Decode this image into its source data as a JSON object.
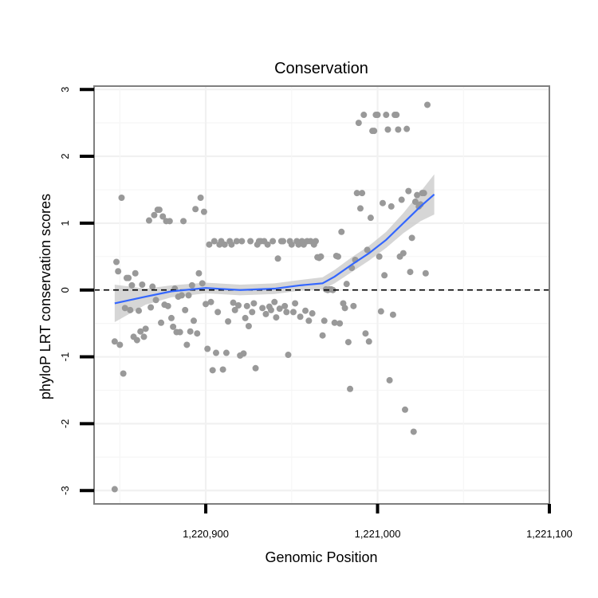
{
  "chart_data": {
    "type": "scatter",
    "title": "Conservation",
    "xlabel": "Genomic Position",
    "ylabel": "phyloP LRT conservation scores",
    "xlim": [
      1220835,
      1221100
    ],
    "ylim": [
      -3.2,
      3.05
    ],
    "x_ticks": [
      {
        "value": 1220900,
        "label": "1,220,900"
      },
      {
        "value": 1221000,
        "label": "1,221,000"
      },
      {
        "value": 1221100,
        "label": "1,221,100"
      }
    ],
    "y_ticks": [
      {
        "value": 3,
        "label": "3"
      },
      {
        "value": 2,
        "label": "2"
      },
      {
        "value": 1,
        "label": "1"
      },
      {
        "value": 0,
        "label": "0"
      },
      {
        "value": -1,
        "label": "-1"
      },
      {
        "value": -2,
        "label": "-2"
      },
      {
        "value": -3,
        "label": "-3"
      }
    ],
    "reference_line": {
      "y": 0,
      "style": "dashed"
    },
    "grid": true,
    "colors": {
      "points": "#999999",
      "smooth": "#3366ff",
      "ribbon": "#cccccc",
      "frame": "#7f7f7f"
    },
    "points": [
      [
        1220847,
        -2.98
      ],
      [
        1220847,
        -0.77
      ],
      [
        1220848,
        0.42
      ],
      [
        1220849,
        0.28
      ],
      [
        1220850,
        -0.82
      ],
      [
        1220851,
        1.38
      ],
      [
        1220852,
        -1.25
      ],
      [
        1220853,
        -0.27
      ],
      [
        1220854,
        0.18
      ],
      [
        1220855,
        0.18
      ],
      [
        1220856,
        -0.3
      ],
      [
        1220857,
        0.07
      ],
      [
        1220858,
        -0.7
      ],
      [
        1220859,
        0.25
      ],
      [
        1220860,
        -0.75
      ],
      [
        1220861,
        -0.31
      ],
      [
        1220862,
        -0.62
      ],
      [
        1220863,
        0.08
      ],
      [
        1220864,
        -0.7
      ],
      [
        1220865,
        -0.58
      ],
      [
        1220867,
        1.04
      ],
      [
        1220868,
        -0.26
      ],
      [
        1220869,
        0.05
      ],
      [
        1220870,
        1.12
      ],
      [
        1220871,
        -0.15
      ],
      [
        1220872,
        1.2
      ],
      [
        1220873,
        1.2
      ],
      [
        1220874,
        -0.49
      ],
      [
        1220875,
        1.1
      ],
      [
        1220876,
        -0.22
      ],
      [
        1220877,
        1.03
      ],
      [
        1220878,
        -0.24
      ],
      [
        1220879,
        1.03
      ],
      [
        1220880,
        -0.42
      ],
      [
        1220881,
        -0.55
      ],
      [
        1220882,
        0.02
      ],
      [
        1220883,
        -0.63
      ],
      [
        1220884,
        -0.1
      ],
      [
        1220885,
        -0.63
      ],
      [
        1220886,
        -0.08
      ],
      [
        1220887,
        1.03
      ],
      [
        1220888,
        -0.3
      ],
      [
        1220889,
        -0.82
      ],
      [
        1220890,
        -0.08
      ],
      [
        1220891,
        -0.62
      ],
      [
        1220892,
        0.07
      ],
      [
        1220893,
        -0.46
      ],
      [
        1220894,
        1.21
      ],
      [
        1220895,
        -0.65
      ],
      [
        1220896,
        0.25
      ],
      [
        1220897,
        1.38
      ],
      [
        1220898,
        0.1
      ],
      [
        1220899,
        1.17
      ],
      [
        1220900,
        -0.21
      ],
      [
        1220901,
        -0.88
      ],
      [
        1220902,
        0.68
      ],
      [
        1220903,
        -0.18
      ],
      [
        1220904,
        -1.2
      ],
      [
        1220905,
        0.73
      ],
      [
        1220906,
        -0.94
      ],
      [
        1220907,
        -0.33
      ],
      [
        1220908,
        0.68
      ],
      [
        1220909,
        0.73
      ],
      [
        1220910,
        -1.19
      ],
      [
        1220911,
        0.68
      ],
      [
        1220912,
        -0.94
      ],
      [
        1220913,
        -0.47
      ],
      [
        1220914,
        0.73
      ],
      [
        1220915,
        0.68
      ],
      [
        1220916,
        -0.19
      ],
      [
        1220917,
        -0.3
      ],
      [
        1220918,
        0.73
      ],
      [
        1220919,
        -0.23
      ],
      [
        1220920,
        -0.98
      ],
      [
        1220921,
        0.73
      ],
      [
        1220922,
        -0.95
      ],
      [
        1220923,
        -0.42
      ],
      [
        1220924,
        -0.24
      ],
      [
        1220925,
        -0.54
      ],
      [
        1220926,
        0.73
      ],
      [
        1220927,
        -0.33
      ],
      [
        1220928,
        -0.2
      ],
      [
        1220929,
        -1.17
      ],
      [
        1220930,
        0.68
      ],
      [
        1220931,
        0.73
      ],
      [
        1220932,
        0.73
      ],
      [
        1220933,
        -0.27
      ],
      [
        1220934,
        0.73
      ],
      [
        1220935,
        -0.36
      ],
      [
        1220936,
        0.68
      ],
      [
        1220937,
        -0.25
      ],
      [
        1220938,
        -0.3
      ],
      [
        1220939,
        0.73
      ],
      [
        1220940,
        -0.18
      ],
      [
        1220941,
        -0.41
      ],
      [
        1220942,
        0.47
      ],
      [
        1220943,
        -0.28
      ],
      [
        1220944,
        0.73
      ],
      [
        1220945,
        0.73
      ],
      [
        1220946,
        -0.24
      ],
      [
        1220947,
        -0.33
      ],
      [
        1220948,
        -0.97
      ],
      [
        1220949,
        0.73
      ],
      [
        1220950,
        0.68
      ],
      [
        1220951,
        -0.33
      ],
      [
        1220952,
        -0.2
      ],
      [
        1220953,
        0.73
      ],
      [
        1220954,
        0.68
      ],
      [
        1220955,
        -0.4
      ],
      [
        1220956,
        0.73
      ],
      [
        1220957,
        0.68
      ],
      [
        1220958,
        -0.31
      ],
      [
        1220959,
        0.73
      ],
      [
        1220960,
        -0.46
      ],
      [
        1220961,
        0.73
      ],
      [
        1220962,
        -0.35
      ],
      [
        1220963,
        0.68
      ],
      [
        1220964,
        0.73
      ],
      [
        1220965,
        0.49
      ],
      [
        1220966,
        0.48
      ],
      [
        1220967,
        0.5
      ],
      [
        1220968,
        -0.68
      ],
      [
        1220969,
        -0.46
      ],
      [
        1220970,
        0.01
      ],
      [
        1220971,
        0.0
      ],
      [
        1220972,
        0.01
      ],
      [
        1220973,
        0.01
      ],
      [
        1220974,
        0.0
      ],
      [
        1220975,
        -0.49
      ],
      [
        1220976,
        0.51
      ],
      [
        1220977,
        0.5
      ],
      [
        1220978,
        -0.5
      ],
      [
        1220979,
        0.87
      ],
      [
        1220980,
        -0.2
      ],
      [
        1220981,
        -0.27
      ],
      [
        1220982,
        0.09
      ],
      [
        1220983,
        -0.78
      ],
      [
        1220984,
        -1.48
      ],
      [
        1220985,
        0.33
      ],
      [
        1220986,
        -0.24
      ],
      [
        1220987,
        0.45
      ],
      [
        1220988,
        1.45
      ],
      [
        1220989,
        2.5
      ],
      [
        1220990,
        1.22
      ],
      [
        1220991,
        1.45
      ],
      [
        1220992,
        2.62
      ],
      [
        1220993,
        -0.65
      ],
      [
        1220994,
        0.6
      ],
      [
        1220995,
        -0.77
      ],
      [
        1220996,
        1.08
      ],
      [
        1220997,
        2.38
      ],
      [
        1220998,
        2.38
      ],
      [
        1220999,
        2.62
      ],
      [
        1221000,
        2.62
      ],
      [
        1221001,
        0.5
      ],
      [
        1221002,
        -0.32
      ],
      [
        1221003,
        1.3
      ],
      [
        1221004,
        0.22
      ],
      [
        1221005,
        2.62
      ],
      [
        1221006,
        2.4
      ],
      [
        1221007,
        -1.35
      ],
      [
        1221008,
        1.25
      ],
      [
        1221009,
        -0.37
      ],
      [
        1221010,
        2.62
      ],
      [
        1221011,
        2.62
      ],
      [
        1221012,
        2.4
      ],
      [
        1221013,
        0.5
      ],
      [
        1221014,
        1.35
      ],
      [
        1221015,
        0.55
      ],
      [
        1221016,
        -1.79
      ],
      [
        1221017,
        2.41
      ],
      [
        1221018,
        1.48
      ],
      [
        1221019,
        0.27
      ],
      [
        1221020,
        0.78
      ],
      [
        1221021,
        -2.12
      ],
      [
        1221022,
        1.32
      ],
      [
        1221023,
        1.42
      ],
      [
        1221024,
        1.25
      ],
      [
        1221025,
        1.28
      ],
      [
        1221026,
        1.45
      ],
      [
        1221027,
        1.45
      ],
      [
        1221028,
        0.25
      ],
      [
        1221029,
        2.77
      ]
    ],
    "smooth": [
      [
        1220847,
        -0.2
      ],
      [
        1220865,
        -0.1
      ],
      [
        1220880,
        -0.02
      ],
      [
        1220900,
        0.03
      ],
      [
        1220920,
        0.0
      ],
      [
        1220940,
        0.02
      ],
      [
        1220955,
        0.07
      ],
      [
        1220968,
        0.1
      ],
      [
        1220975,
        0.2
      ],
      [
        1220985,
        0.38
      ],
      [
        1220995,
        0.55
      ],
      [
        1221005,
        0.75
      ],
      [
        1221015,
        1.0
      ],
      [
        1221025,
        1.25
      ],
      [
        1221033,
        1.43
      ]
    ],
    "ribbon_halfwidth": [
      [
        1220847,
        0.28
      ],
      [
        1220865,
        0.12
      ],
      [
        1220880,
        0.09
      ],
      [
        1220900,
        0.08
      ],
      [
        1220920,
        0.08
      ],
      [
        1220940,
        0.08
      ],
      [
        1220955,
        0.08
      ],
      [
        1220968,
        0.09
      ],
      [
        1220975,
        0.1
      ],
      [
        1220985,
        0.11
      ],
      [
        1220995,
        0.11
      ],
      [
        1221005,
        0.12
      ],
      [
        1221015,
        0.15
      ],
      [
        1221025,
        0.22
      ],
      [
        1221033,
        0.3
      ]
    ]
  }
}
